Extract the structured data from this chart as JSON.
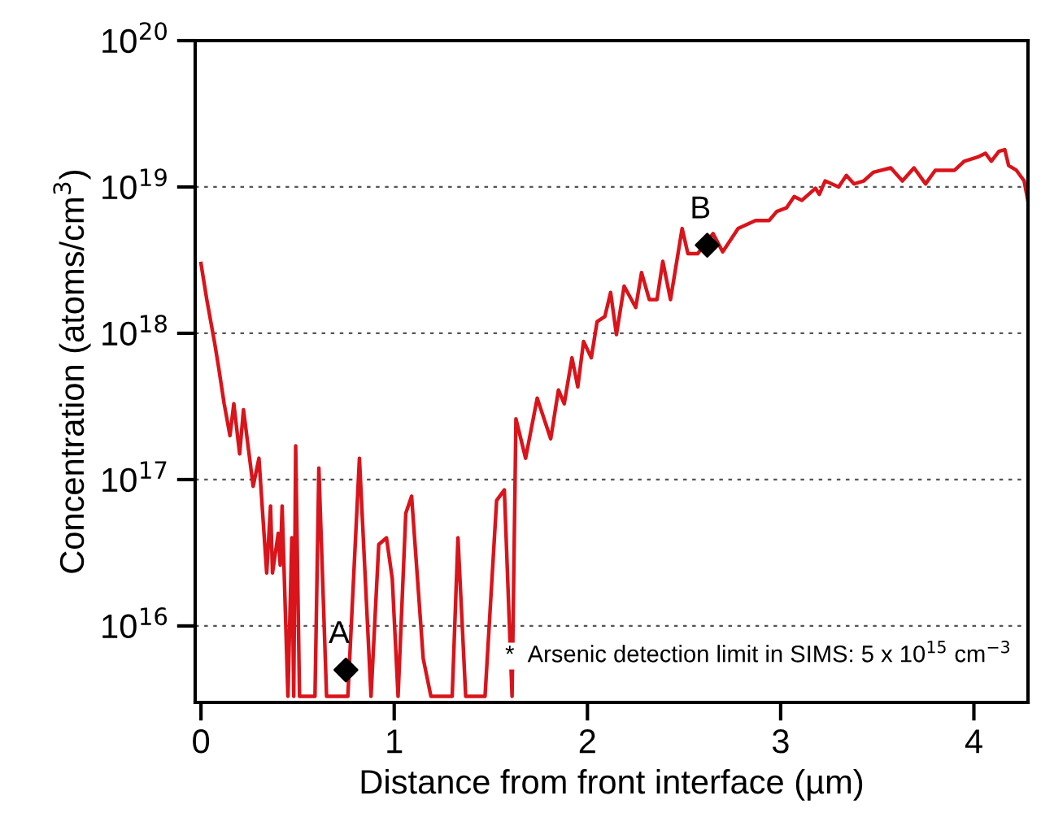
{
  "chart_data": {
    "type": "line",
    "xlabel": "Distance from front interface (µm)",
    "ylabel": "Concentration (atoms/cm$^{3}$)",
    "log": "y",
    "grid": "y",
    "xlim": [
      -0.03,
      4.28
    ],
    "xticks": [
      0,
      1,
      2,
      3,
      4
    ],
    "ylim": [
      3000000000000000.0,
      1e+20
    ],
    "yticks": [
      {
        "value": 1e+16,
        "label": "10$^{16}$"
      },
      {
        "value": 1e+17,
        "label": "10$^{17}$"
      },
      {
        "value": 1e+18,
        "label": "10$^{18}$"
      },
      {
        "value": 1e+19,
        "label": "10$^{19}$"
      },
      {
        "value": 1e+20,
        "label": "10$^{20}$"
      }
    ],
    "series": [
      {
        "color": "#d9141b",
        "line_style": "solid",
        "marker": "none",
        "x": [
          0,
          0.03,
          0.07,
          0.09,
          0.12,
          0.15,
          0.17,
          0.2,
          0.22,
          0.27,
          0.3,
          0.34,
          0.36,
          0.37,
          0.4,
          0.41,
          0.42,
          0.45,
          0.47,
          0.48,
          0.49,
          0.51,
          0.59,
          0.61,
          0.65,
          0.76,
          0.82,
          0.88,
          0.92,
          0.96,
          0.99,
          1.02,
          1.06,
          1.09,
          1.15,
          1.19,
          1.3,
          1.33,
          1.37,
          1.47,
          1.53,
          1.57,
          1.61,
          1.63,
          1.68,
          1.74,
          1.81,
          1.85,
          1.88,
          1.92,
          1.95,
          1.98,
          2.02,
          2.05,
          2.09,
          2.12,
          2.15,
          2.19,
          2.25,
          2.28,
          2.32,
          2.36,
          2.39,
          2.43,
          2.49,
          2.52,
          2.57,
          2.65,
          2.7,
          2.78,
          2.87,
          2.94,
          2.98,
          3.03,
          3.07,
          3.11,
          3.18,
          3.2,
          3.23,
          3.3,
          3.34,
          3.38,
          3.43,
          3.48,
          3.57,
          3.63,
          3.69,
          3.75,
          3.8,
          3.9,
          3.95,
          4.02,
          4.06,
          4.09,
          4.13,
          4.16,
          4.18,
          4.22,
          4.26,
          4.28
        ],
        "values": [
          3e+18,
          1.7e+18,
          8.7e+17,
          6e+17,
          3.3e+17,
          2e+17,
          3.3e+17,
          1.5e+17,
          3e+17,
          9e+16,
          1.4e+17,
          2.3e+16,
          6.6e+16,
          2.3e+16,
          4.3e+16,
          2.6e+16,
          6.6e+16,
          3300000000000000.0,
          4e+16,
          3300000000000000.0,
          1.7e+17,
          3300000000000000.0,
          3300000000000000.0,
          1.2e+17,
          3300000000000000.0,
          3300000000000000.0,
          1.4e+17,
          3300000000000000.0,
          3.6e+16,
          4e+16,
          2.1e+16,
          3300000000000000.0,
          5.9e+16,
          7.7e+16,
          6000000000000000.0,
          3300000000000000.0,
          3300000000000000.0,
          4e+16,
          3300000000000000.0,
          3300000000000000.0,
          7.2e+16,
          8.5e+16,
          3300000000000000.0,
          2.6e+17,
          1.4e+17,
          3.6e+17,
          1.9e+17,
          4.1e+17,
          3.3e+17,
          6.8e+17,
          4.3e+17,
          8.8e+17,
          6.8e+17,
          1.2e+18,
          1.3e+18,
          1.9e+18,
          9.8e+17,
          2.1e+18,
          1.5e+18,
          2.6e+18,
          1.7e+18,
          1.7e+18,
          3.1e+18,
          1.7e+18,
          5.2e+18,
          3.5e+18,
          3.5e+18,
          4.8e+18,
          3.6e+18,
          5.2e+18,
          5.9e+18,
          5.9e+18,
          6.8e+18,
          7.2e+18,
          8.6e+18,
          8.1e+18,
          9.8e+18,
          8.9e+18,
          1.1e+19,
          1e+19,
          1.2e+19,
          1.05e+19,
          1.1e+19,
          1.26e+19,
          1.35e+19,
          1.1e+19,
          1.35e+19,
          1.05e+19,
          1.3e+19,
          1.3e+19,
          1.5e+19,
          1.6e+19,
          1.7e+19,
          1.5e+19,
          1.75e+19,
          1.8e+19,
          1.4e+19,
          1.3e+19,
          1.1e+19,
          8e+18
        ]
      },
      {
        "type": "scatter",
        "color": "#000000",
        "marker": "diamond",
        "x": [
          0.75,
          2.62
        ],
        "values": [
          5000000000000000.0,
          4e+18
        ]
      }
    ],
    "annotations": [
      {
        "text": "A",
        "x": 0.75,
        "y": 5000000000000000.0
      },
      {
        "text": "B",
        "x": 2.62,
        "y": 4e+18
      },
      "*  Arsenic detection limit in SIMS: 5 x 10$^{15}$ cm$^{−3}$"
    ]
  }
}
